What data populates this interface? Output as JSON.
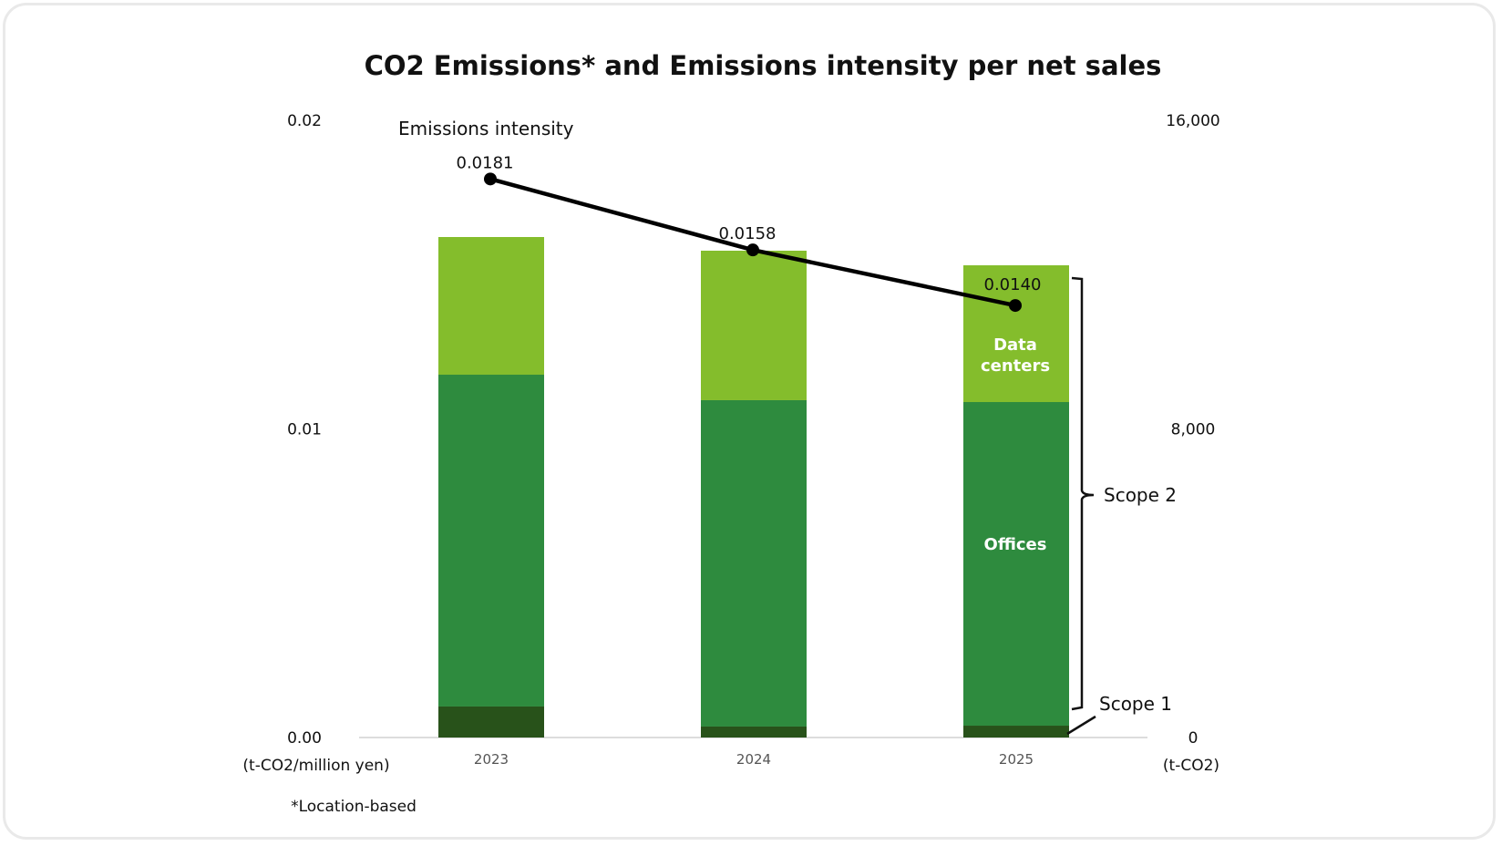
{
  "chart_data": {
    "type": "bar",
    "subtype": "stacked-bar-with-line",
    "title": "CO2 Emissions* and Emissions intensity per net sales",
    "categories": [
      "2023",
      "2024",
      "2025"
    ],
    "series": [
      {
        "name": "Scope 1",
        "axis": "right",
        "type": "bar",
        "color": "#28521a",
        "values": [
          804,
          284,
          307
        ]
      },
      {
        "name": "Offices",
        "axis": "right",
        "type": "bar",
        "color": "#2e8b3e",
        "values": [
          8602,
          8461,
          8390
        ]
      },
      {
        "name": "Data centers",
        "axis": "right",
        "type": "bar",
        "color": "#84bd2c",
        "values": [
          3569,
          3876,
          3545
        ]
      },
      {
        "name": "Emissions intensity",
        "axis": "left",
        "type": "line",
        "color": "#000000",
        "values": [
          0.0181,
          0.0158,
          0.014
        ]
      }
    ],
    "line_labels": [
      "0.0181",
      "0.0158",
      "0.0140"
    ],
    "left_axis": {
      "unit": "(t-CO2/million yen)",
      "ylim": [
        0,
        0.02
      ],
      "ticks": [
        "0.00",
        "0.01",
        "0.02"
      ]
    },
    "right_axis": {
      "unit": "(t-CO2)",
      "ylim": [
        0,
        16000
      ],
      "ticks": [
        "0",
        "8,000",
        "16,000"
      ]
    },
    "segment_labels": {
      "offices": "Offices",
      "data_centers_line1": "Data",
      "data_centers_line2": "centers"
    },
    "brackets": {
      "scope2": "Scope 2",
      "scope1": "Scope 1"
    },
    "line_series_label": "Emissions intensity",
    "footnote": "*Location-based",
    "grid": false,
    "legend": "none"
  }
}
